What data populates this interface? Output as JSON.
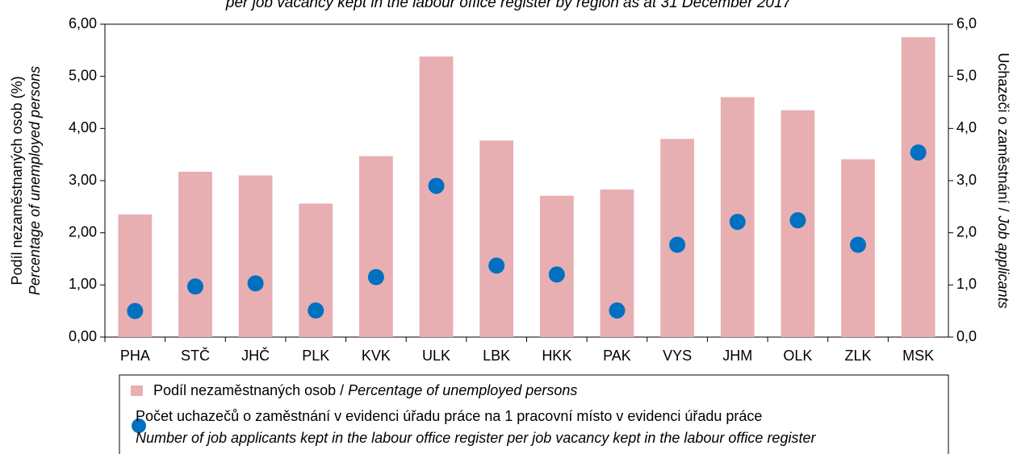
{
  "chart_data": {
    "type": "bar",
    "title": "per job vacancy kept in the labour office register by region as at 31 December 2017",
    "y_label": [
      "Podíl nezaměstnaných osob (%)",
      "Percentage of unemployed persons"
    ],
    "y2_label": [
      "Uchazeči o zaměstnání / ",
      "Job applicants"
    ],
    "categories": [
      "PHA",
      "STČ",
      "JHČ",
      "PLK",
      "KVK",
      "ULK",
      "LBK",
      "HKK",
      "PAK",
      "VYS",
      "JHM",
      "OLK",
      "ZLK",
      "MSK"
    ],
    "series": [
      {
        "name": [
          "Podíl nezaměstnaných osob / ",
          "Percentage of unemployed persons"
        ],
        "color": "#e8afb3",
        "type": "bar",
        "values": [
          2.35,
          3.17,
          3.1,
          2.56,
          3.47,
          5.38,
          3.77,
          2.71,
          2.83,
          3.8,
          4.6,
          4.35,
          3.41,
          5.75
        ]
      },
      {
        "name": [
          "Počet uchazečů o zaměstnání v evidenci úřadu práce na 1 pracovní místo v evidenci úřadu práce",
          "Number of job applicants kept in the labour office register per job vacancy kept in the labour office register"
        ],
        "color": "#0070c0",
        "type": "scatter",
        "axis": "y2",
        "values": [
          0.5,
          0.97,
          1.03,
          0.51,
          1.15,
          2.9,
          1.37,
          1.2,
          0.51,
          1.77,
          2.21,
          2.24,
          1.77,
          3.54
        ]
      }
    ],
    "ylim": [
      0,
      6
    ],
    "yticks": [
      {
        "value": 0,
        "label": "0,00"
      },
      {
        "value": 1,
        "label": "1,00"
      },
      {
        "value": 2,
        "label": "2,00"
      },
      {
        "value": 3,
        "label": "3,00"
      },
      {
        "value": 4,
        "label": "4,00"
      },
      {
        "value": 5,
        "label": "5,00"
      },
      {
        "value": 6,
        "label": "6,00"
      }
    ],
    "y2lim": [
      0,
      6
    ],
    "y2ticks": [
      {
        "value": 0,
        "label": "0,0"
      },
      {
        "value": 1,
        "label": "1,0"
      },
      {
        "value": 2,
        "label": "2,0"
      },
      {
        "value": 3,
        "label": "3,0"
      },
      {
        "value": 4,
        "label": "4,0"
      },
      {
        "value": 5,
        "label": "5,0"
      },
      {
        "value": 6,
        "label": "6,0"
      }
    ],
    "grid": false
  }
}
